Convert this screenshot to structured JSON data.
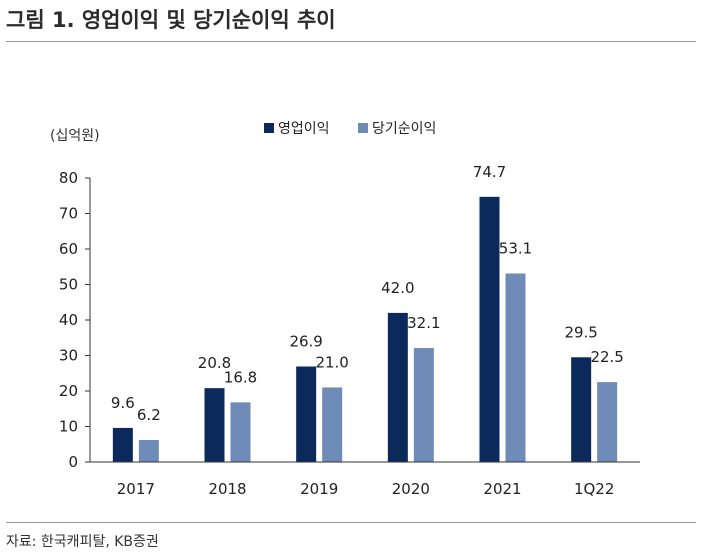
{
  "title": "그림 1. 영업이익 및 당기순이익 추이",
  "source": "자료: 한국캐피탈, KB증권",
  "chart_data": {
    "type": "bar",
    "unit_label": "(십억원)",
    "categories": [
      "2017",
      "2018",
      "2019",
      "2020",
      "2021",
      "1Q22"
    ],
    "series": [
      {
        "name": "영업이익",
        "color": "#0b2a5b",
        "values": [
          9.6,
          20.8,
          26.9,
          42.0,
          74.7,
          29.5
        ]
      },
      {
        "name": "당기순이익",
        "color": "#6f8bb8",
        "values": [
          6.2,
          16.8,
          21.0,
          32.1,
          53.1,
          22.5
        ]
      }
    ],
    "data_labels": [
      [
        "9.6",
        "20.8",
        "26.9",
        "42.0",
        "74.7",
        "29.5"
      ],
      [
        "6.2",
        "16.8",
        "21.0",
        "32.1",
        "53.1",
        "22.5"
      ]
    ],
    "ylim": [
      0,
      80
    ],
    "yticks": [
      "0",
      "10",
      "20",
      "30",
      "40",
      "50",
      "60",
      "70",
      "80"
    ],
    "legend": "top-center",
    "grid": false
  }
}
